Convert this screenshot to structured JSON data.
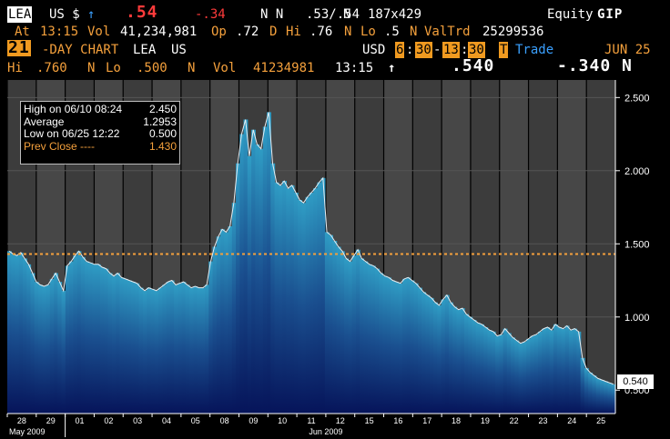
{
  "header": {
    "row1": {
      "ticker": "LEA",
      "market": "US $",
      "arrow": "↑",
      "last": ".54",
      "change": "-.34",
      "flags": "N N",
      "bid_ask": ".53/.54",
      "flag2": "N",
      "size": "187x429",
      "right_label": "Equity",
      "right_function": "GIP"
    },
    "row2": {
      "at_label": "At",
      "time": "13:15",
      "vol_label": "Vol",
      "vol": "41,234,981",
      "op_label": "Op",
      "open": ".72",
      "d": "D",
      "hi_label": "Hi",
      "hi": ".76",
      "n1": "N",
      "lo_label": "Lo",
      "lo": ".5",
      "n2": "N",
      "valtrd_label": "ValTrd",
      "valtrd": "25299536"
    },
    "row3": {
      "period": "21",
      "chart_label": "-DAY CHART",
      "ticker": "LEA",
      "market": "US",
      "currency": "USD",
      "h1": "6",
      "m1": "30",
      "h2": "13",
      "m2": "30",
      "t_box": "T",
      "trade_label": "Trade",
      "date": "JUN 25"
    },
    "row4": {
      "hi_label": "Hi",
      "hi": ".760",
      "n1": "N",
      "lo_label": "Lo",
      "lo": ".500",
      "n2": "N",
      "vol_label": "Vol",
      "vol": "41234981",
      "time": "13:15",
      "arrow": "↑",
      "last": ".540",
      "change": "-.340 N"
    }
  },
  "legend": {
    "high_label": "High on  06/10 08:24",
    "high_value": "2.450",
    "avg_label": "Average",
    "avg_value": "1.2953",
    "low_label": "Low on  06/25 12:22",
    "low_value": "0.500",
    "prev_label": "Prev Close ----",
    "prev_value": "1.430"
  },
  "last_price_label": "0.540",
  "colors": {
    "orange": "#f4a03c",
    "red": "#ff3b3b",
    "blue": "#3aa0ff",
    "bar_top": "#2f9cc4",
    "bar_bottom": "#06145a"
  },
  "chart_data": {
    "type": "area",
    "x_label_months": [
      "May 2009",
      "Jun 2009"
    ],
    "days": [
      "28",
      "29",
      "01",
      "02",
      "03",
      "04",
      "05",
      "08",
      "09",
      "10",
      "11",
      "12",
      "15",
      "16",
      "17",
      "18",
      "19",
      "22",
      "23",
      "24",
      "25"
    ],
    "values": [
      1.45,
      1.43,
      1.42,
      1.44,
      1.4,
      1.36,
      1.3,
      1.24,
      1.22,
      1.21,
      1.22,
      1.26,
      1.3,
      1.24,
      1.18,
      1.35,
      1.38,
      1.42,
      1.45,
      1.41,
      1.38,
      1.37,
      1.36,
      1.36,
      1.34,
      1.33,
      1.3,
      1.28,
      1.3,
      1.27,
      1.26,
      1.25,
      1.24,
      1.23,
      1.2,
      1.18,
      1.2,
      1.19,
      1.18,
      1.2,
      1.22,
      1.24,
      1.25,
      1.22,
      1.23,
      1.24,
      1.22,
      1.2,
      1.21,
      1.2,
      1.2,
      1.22,
      1.38,
      1.48,
      1.55,
      1.6,
      1.58,
      1.62,
      1.78,
      2.05,
      2.25,
      2.35,
      2.1,
      2.28,
      2.18,
      2.15,
      2.3,
      2.4,
      2.05,
      1.92,
      1.9,
      1.93,
      1.88,
      1.9,
      1.85,
      1.8,
      1.78,
      1.82,
      1.85,
      1.88,
      1.92,
      1.95,
      1.58,
      1.56,
      1.52,
      1.48,
      1.45,
      1.4,
      1.38,
      1.42,
      1.46,
      1.4,
      1.38,
      1.36,
      1.35,
      1.33,
      1.3,
      1.28,
      1.27,
      1.25,
      1.24,
      1.23,
      1.26,
      1.27,
      1.25,
      1.23,
      1.2,
      1.17,
      1.15,
      1.13,
      1.1,
      1.08,
      1.12,
      1.15,
      1.1,
      1.07,
      1.05,
      1.06,
      1.02,
      1.0,
      0.98,
      0.96,
      0.95,
      0.93,
      0.91,
      0.9,
      0.87,
      0.88,
      0.92,
      0.89,
      0.86,
      0.84,
      0.82,
      0.83,
      0.85,
      0.87,
      0.88,
      0.9,
      0.92,
      0.93,
      0.91,
      0.95,
      0.93,
      0.92,
      0.94,
      0.91,
      0.92,
      0.9,
      0.72,
      0.65,
      0.62,
      0.6,
      0.58,
      0.57,
      0.56,
      0.55,
      0.54
    ],
    "prev_close": 1.43,
    "y_ticks": [
      {
        "value": 2.5,
        "label": "2.500"
      },
      {
        "value": 2.0,
        "label": "2.000"
      },
      {
        "value": 1.5,
        "label": "1.500"
      },
      {
        "value": 1.0,
        "label": "1.000"
      },
      {
        "value": 0.5,
        "label": "0.500"
      }
    ],
    "ylim": [
      0.34,
      2.62
    ],
    "grid": true
  }
}
